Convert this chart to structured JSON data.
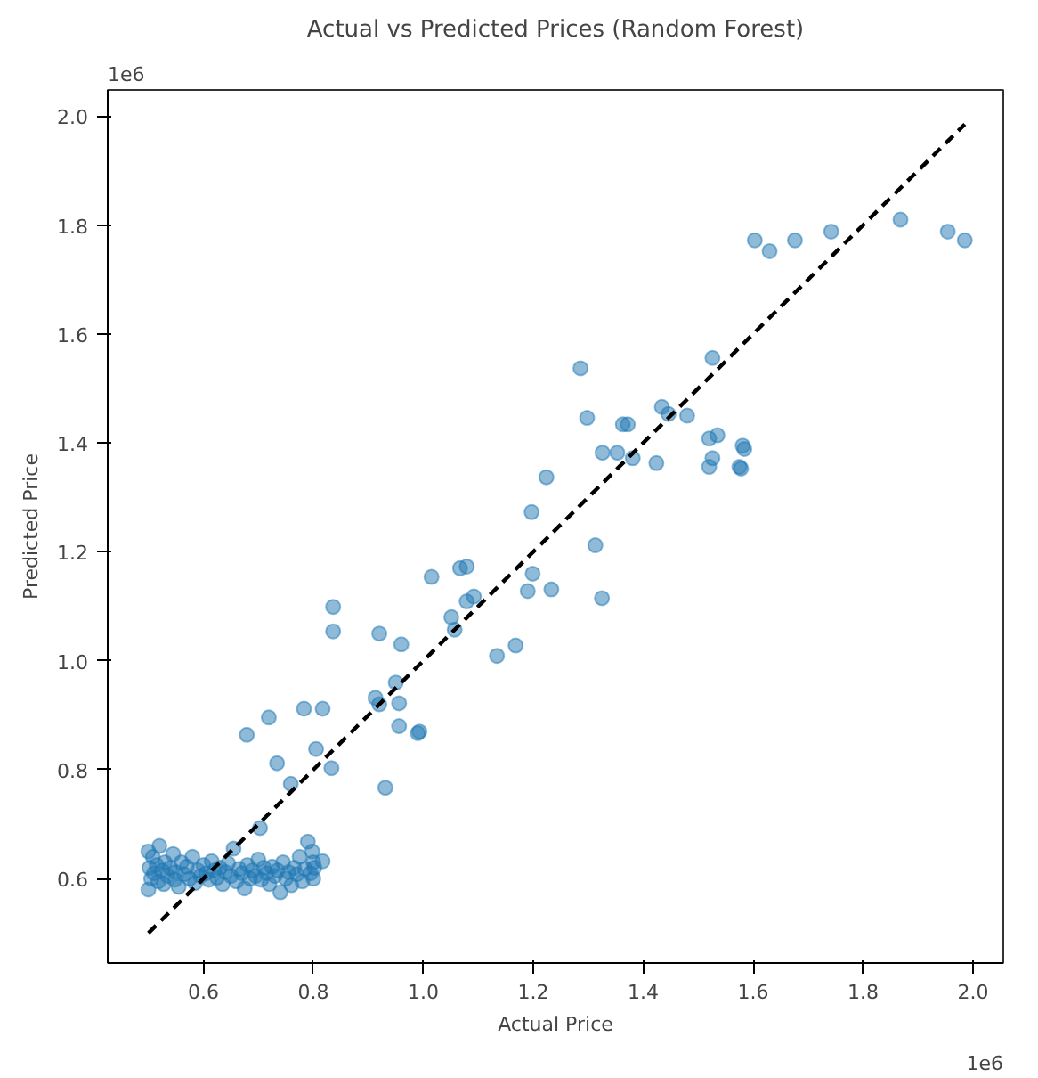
{
  "chart_data": {
    "type": "scatter",
    "title": "Actual vs Predicted Prices (Random Forest)",
    "xlabel": "Actual Price",
    "ylabel": "Predicted Price",
    "annotations": [
      "1e6",
      "1e6"
    ],
    "xlim": [
      0.426,
      2.055
    ],
    "ylim": [
      0.445,
      2.048
    ],
    "xticks": [
      0.6,
      0.8,
      {
        "value": 1,
        "label": "1.0"
      },
      1.2,
      1.4,
      1.6,
      1.8,
      {
        "value": 2,
        "label": "2.0"
      }
    ],
    "yticks": [
      0.6,
      0.8,
      {
        "value": 1,
        "label": "1.0"
      },
      1.2,
      1.4,
      1.6,
      1.8,
      {
        "value": 2,
        "label": "2.0"
      }
    ],
    "grid": false,
    "marker": "circle",
    "series": [
      {
        "color": "#1f77b4",
        "x": [
          0.5,
          0.5,
          0.502,
          0.505,
          0.508,
          0.51,
          0.515,
          0.518,
          0.52,
          0.525,
          0.528,
          0.53,
          0.535,
          0.54,
          0.545,
          0.548,
          0.55,
          0.555,
          0.56,
          0.565,
          0.57,
          0.575,
          0.58,
          0.585,
          0.59,
          0.595,
          0.6,
          0.605,
          0.61,
          0.615,
          0.62,
          0.625,
          0.63,
          0.635,
          0.64,
          0.645,
          0.65,
          0.655,
          0.66,
          0.665,
          0.67,
          0.675,
          0.68,
          0.685,
          0.69,
          0.695,
          0.7,
          0.705,
          0.71,
          0.715,
          0.72,
          0.725,
          0.73,
          0.735,
          0.74,
          0.745,
          0.75,
          0.755,
          0.76,
          0.765,
          0.77,
          0.775,
          0.78,
          0.785,
          0.79,
          0.795,
          0.798,
          0.8,
          0.8,
          0.802,
          0.679,
          0.719,
          0.783,
          0.817,
          0.734,
          0.805,
          0.833,
          0.759,
          0.703,
          0.913,
          0.956,
          0.956,
          0.993,
          0.931,
          0.817,
          0.836,
          0.836,
          0.92,
          0.96,
          0.95,
          0.92,
          1.197,
          1.015,
          1.067,
          1.079,
          1.199,
          1.19,
          1.233,
          1.313,
          1.325,
          1.092,
          1.079,
          1.051,
          1.057,
          1.134,
          1.168,
          0.99,
          1.286,
          1.298,
          1.326,
          1.363,
          1.372,
          1.353,
          1.381,
          1.424,
          1.434,
          1.446,
          1.48,
          1.526,
          1.52,
          1.535,
          1.52,
          1.526,
          1.581,
          1.575,
          1.224,
          1.603,
          1.63,
          1.676,
          1.742,
          1.868,
          1.954,
          1.985,
          1.584,
          1.578
        ],
        "values": [
          0.65,
          0.58,
          0.62,
          0.6,
          0.64,
          0.61,
          0.625,
          0.595,
          0.66,
          0.615,
          0.59,
          0.63,
          0.605,
          0.62,
          0.645,
          0.598,
          0.612,
          0.585,
          0.63,
          0.608,
          0.622,
          0.6,
          0.64,
          0.592,
          0.615,
          0.605,
          0.625,
          0.61,
          0.598,
          0.632,
          0.615,
          0.602,
          0.62,
          0.59,
          0.612,
          0.628,
          0.605,
          0.655,
          0.595,
          0.618,
          0.61,
          0.582,
          0.625,
          0.6,
          0.615,
          0.605,
          0.635,
          0.598,
          0.62,
          0.61,
          0.59,
          0.622,
          0.605,
          0.615,
          0.575,
          0.63,
          0.6,
          0.612,
          0.588,
          0.62,
          0.608,
          0.64,
          0.595,
          0.618,
          0.668,
          0.61,
          0.65,
          0.63,
          0.6,
          0.62,
          0.864,
          0.896,
          0.912,
          0.912,
          0.812,
          0.838,
          0.803,
          0.774,
          0.693,
          0.932,
          0.922,
          0.88,
          0.87,
          0.767,
          0.632,
          1.099,
          1.054,
          1.05,
          1.03,
          0.96,
          0.92,
          1.273,
          1.154,
          1.17,
          1.173,
          1.16,
          1.128,
          1.131,
          1.212,
          1.115,
          1.118,
          1.109,
          1.08,
          1.057,
          1.009,
          1.028,
          0.867,
          1.537,
          1.446,
          1.382,
          1.434,
          1.434,
          1.382,
          1.372,
          1.363,
          1.466,
          1.453,
          1.45,
          1.556,
          1.408,
          1.414,
          1.356,
          1.372,
          1.395,
          1.356,
          1.337,
          1.772,
          1.752,
          1.772,
          1.788,
          1.81,
          1.788,
          1.772,
          1.389,
          1.353
        ]
      },
      {
        "type": "line",
        "color": "#000000",
        "line_style": "dashed",
        "marker": "none",
        "x": [
          0.5,
          1.985
        ],
        "values": [
          0.5,
          1.985
        ]
      }
    ]
  }
}
